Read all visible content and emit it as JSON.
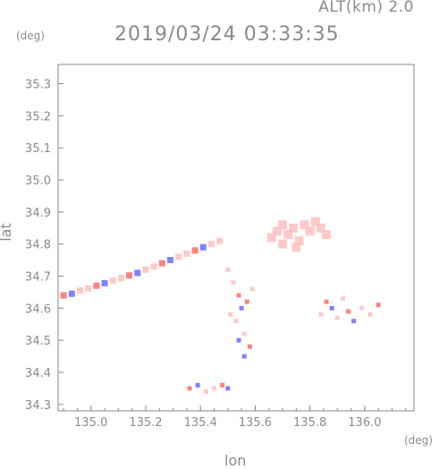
{
  "header": {
    "altitude_label": "ALT(km) 2.0",
    "timestamp": "2019/03/24 03:33:35"
  },
  "chart_data": {
    "type": "scatter",
    "title": "2019/03/24 03:33:35",
    "xlabel": "lon",
    "ylabel": "lat",
    "x_unit": "(deg)",
    "y_unit": "(deg)",
    "xlim": [
      134.88,
      136.18
    ],
    "ylim": [
      34.28,
      35.36
    ],
    "x_ticks": [
      "135.0",
      "135.2",
      "135.4",
      "135.6",
      "135.8",
      "136.0"
    ],
    "y_ticks": [
      "34.3",
      "34.4",
      "34.5",
      "34.6",
      "34.7",
      "34.8",
      "34.9",
      "35.0",
      "35.1",
      "35.2",
      "35.3"
    ],
    "colors": {
      "positive": "#ff6b6b",
      "negative": "#6b6bff",
      "weak": "#ffc0c0",
      "axis": "#8a8a8a"
    },
    "clusters": [
      {
        "name": "streak",
        "points": [
          [
            134.9,
            34.64
          ],
          [
            134.93,
            34.645
          ],
          [
            134.96,
            34.655
          ],
          [
            134.99,
            34.662
          ],
          [
            135.02,
            34.67
          ],
          [
            135.05,
            34.678
          ],
          [
            135.08,
            34.686
          ],
          [
            135.11,
            34.694
          ],
          [
            135.14,
            34.702
          ],
          [
            135.17,
            34.71
          ],
          [
            135.2,
            34.72
          ],
          [
            135.23,
            34.73
          ],
          [
            135.26,
            34.74
          ],
          [
            135.29,
            34.75
          ],
          [
            135.32,
            34.76
          ],
          [
            135.35,
            34.77
          ],
          [
            135.38,
            34.78
          ],
          [
            135.41,
            34.79
          ],
          [
            135.44,
            34.8
          ],
          [
            135.47,
            34.81
          ]
        ]
      },
      {
        "name": "northeast",
        "points": [
          [
            135.66,
            34.82
          ],
          [
            135.68,
            34.84
          ],
          [
            135.7,
            34.8
          ],
          [
            135.72,
            34.83
          ],
          [
            135.74,
            34.85
          ],
          [
            135.76,
            34.81
          ],
          [
            135.78,
            34.86
          ],
          [
            135.8,
            34.84
          ],
          [
            135.82,
            34.87
          ],
          [
            135.84,
            34.85
          ],
          [
            135.86,
            34.83
          ],
          [
            135.75,
            34.79
          ],
          [
            135.7,
            34.86
          ]
        ]
      },
      {
        "name": "central",
        "points": [
          [
            135.5,
            34.72
          ],
          [
            135.52,
            34.68
          ],
          [
            135.54,
            34.64
          ],
          [
            135.55,
            34.6
          ],
          [
            135.53,
            34.56
          ],
          [
            135.56,
            34.52
          ],
          [
            135.58,
            34.48
          ],
          [
            135.56,
            34.45
          ],
          [
            135.51,
            34.58
          ],
          [
            135.59,
            34.66
          ],
          [
            135.57,
            34.62
          ],
          [
            135.54,
            34.5
          ]
        ]
      },
      {
        "name": "east",
        "points": [
          [
            135.84,
            34.58
          ],
          [
            135.86,
            34.62
          ],
          [
            135.88,
            34.6
          ],
          [
            135.9,
            34.57
          ],
          [
            135.92,
            34.63
          ],
          [
            135.94,
            34.59
          ],
          [
            135.96,
            34.56
          ],
          [
            135.99,
            34.6
          ],
          [
            136.02,
            34.58
          ],
          [
            136.05,
            34.61
          ]
        ]
      },
      {
        "name": "south",
        "points": [
          [
            135.36,
            34.35
          ],
          [
            135.39,
            34.36
          ],
          [
            135.42,
            34.34
          ],
          [
            135.45,
            34.35
          ],
          [
            135.48,
            34.36
          ],
          [
            135.5,
            34.35
          ]
        ]
      }
    ]
  }
}
